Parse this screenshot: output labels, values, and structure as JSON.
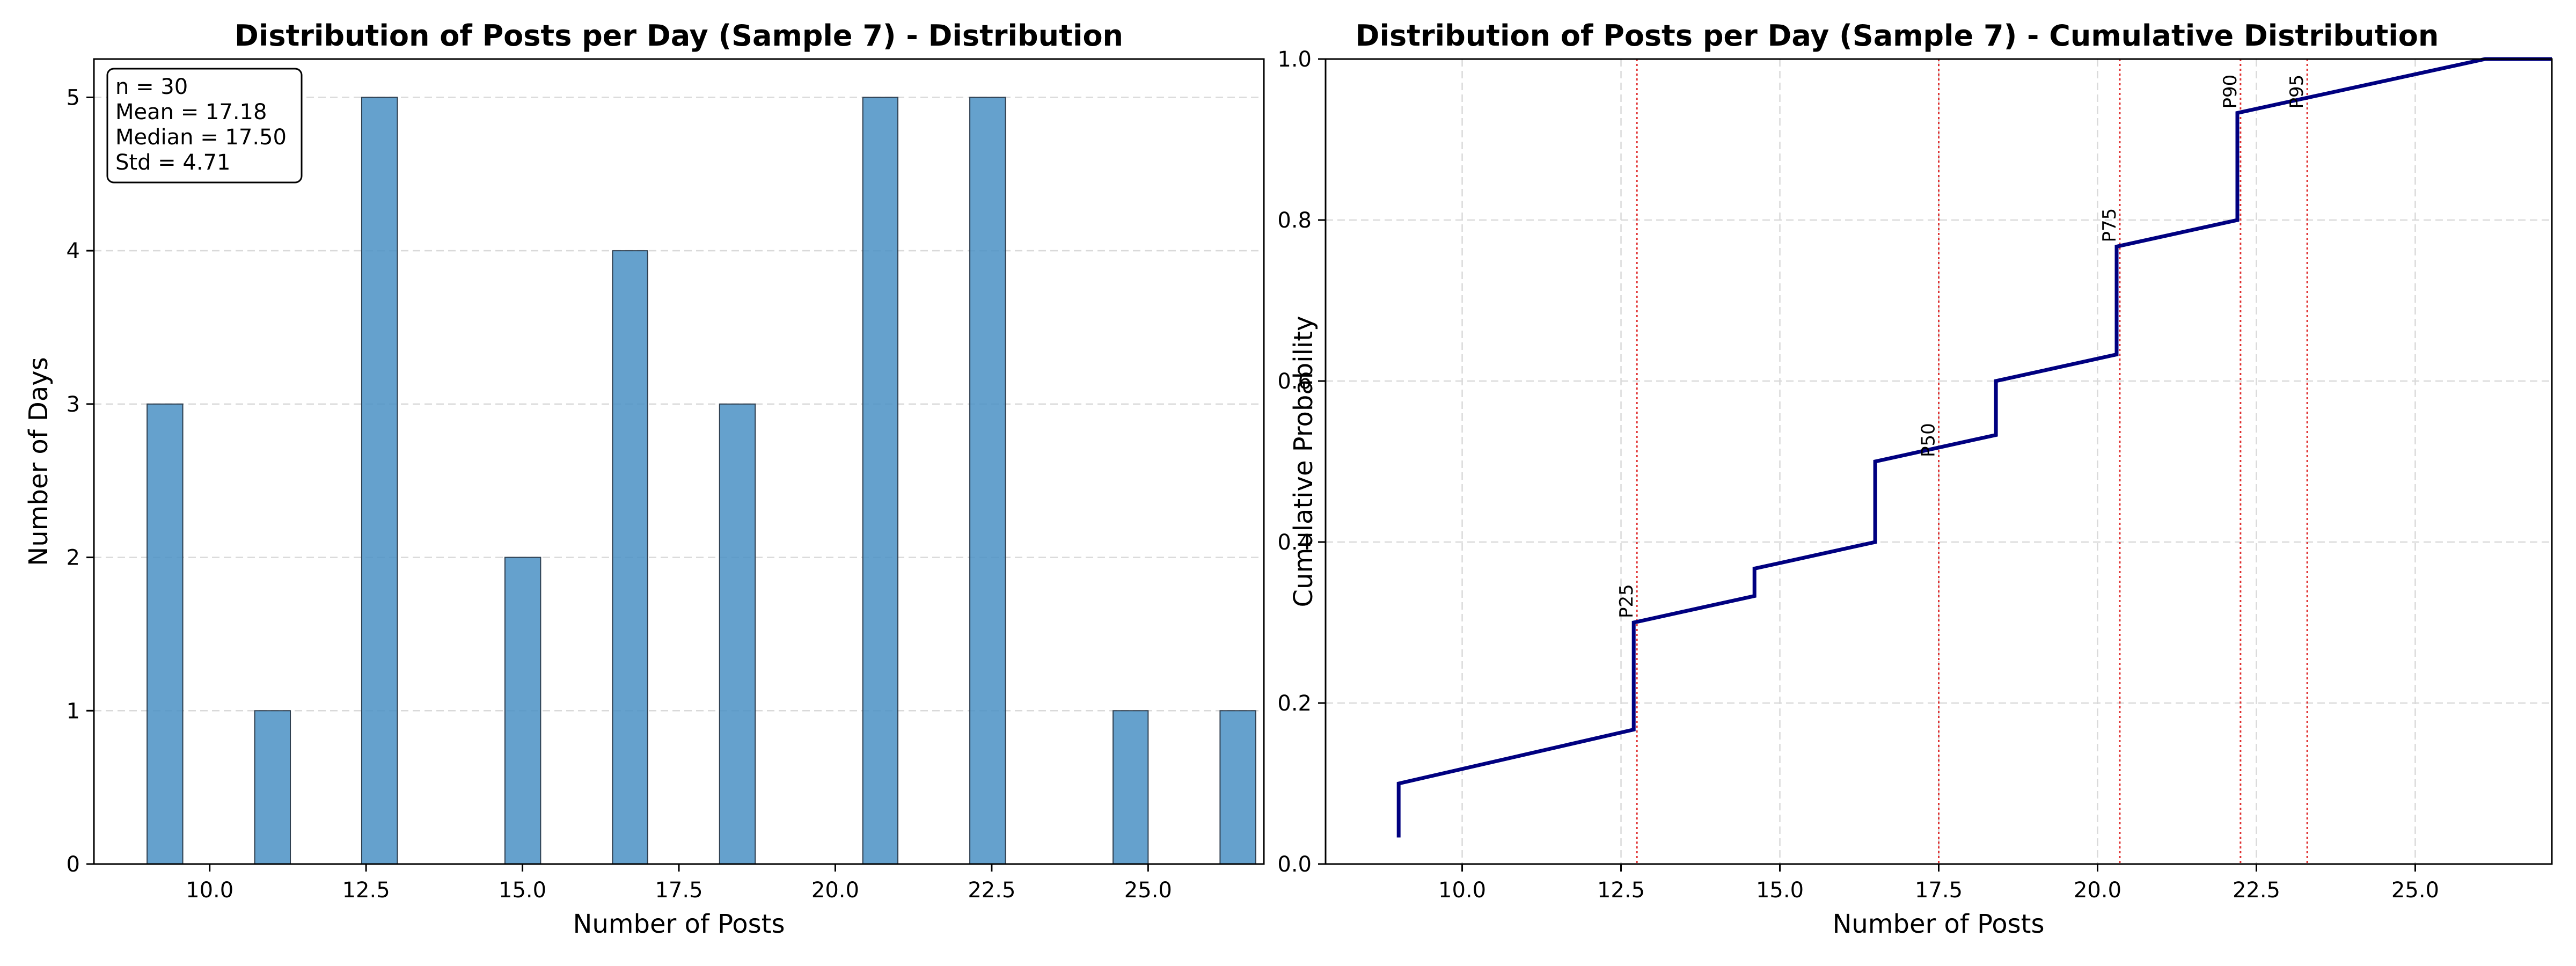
{
  "chart_data": [
    {
      "type": "bar",
      "title": "Distribution of Posts per Day (Sample 7) - Distribution",
      "xlabel": "Number of Posts",
      "ylabel": "Number of Days",
      "xlim": [
        8.15,
        26.85
      ],
      "ylim": [
        0,
        5.25
      ],
      "xticks": [
        10.0,
        12.5,
        15.0,
        17.5,
        20.0,
        22.5,
        25.0
      ],
      "xtick_labels": [
        "10.0",
        "12.5",
        "15.0",
        "17.5",
        "20.0",
        "22.5",
        "25.0"
      ],
      "yticks": [
        0,
        1,
        2,
        3,
        4,
        5
      ],
      "ytick_labels": [
        "0",
        "1",
        "2",
        "3",
        "4",
        "5"
      ],
      "grid": "y-dashed",
      "bar_color": "#4a90c4",
      "bins": [
        {
          "x0": 9.0,
          "x1": 9.57,
          "value": 3
        },
        {
          "x0": 10.72,
          "x1": 11.29,
          "value": 1
        },
        {
          "x0": 12.43,
          "x1": 13.0,
          "value": 5
        },
        {
          "x0": 14.72,
          "x1": 15.29,
          "value": 2
        },
        {
          "x0": 16.44,
          "x1": 17.0,
          "value": 4
        },
        {
          "x0": 18.15,
          "x1": 18.72,
          "value": 3
        },
        {
          "x0": 20.44,
          "x1": 21.0,
          "value": 5
        },
        {
          "x0": 22.15,
          "x1": 22.72,
          "value": 5
        },
        {
          "x0": 24.44,
          "x1": 25.0,
          "value": 1
        },
        {
          "x0": 26.15,
          "x1": 26.72,
          "value": 1
        }
      ],
      "stats": {
        "n": "n = 30",
        "mean": "Mean = 17.18",
        "median": "Median = 17.50",
        "std": "Std = 4.71"
      }
    },
    {
      "type": "line",
      "title": "Distribution of Posts per Day (Sample 7) - Cumulative Distribution",
      "xlabel": "Number of Posts",
      "ylabel": "Cumulative Probability",
      "xlim": [
        7.85,
        27.15
      ],
      "ylim": [
        0.0,
        1.0
      ],
      "xticks": [
        10.0,
        12.5,
        15.0,
        17.5,
        20.0,
        22.5,
        25.0
      ],
      "xtick_labels": [
        "10.0",
        "12.5",
        "15.0",
        "17.5",
        "20.0",
        "22.5",
        "25.0"
      ],
      "yticks": [
        0.0,
        0.2,
        0.4,
        0.6,
        0.8,
        1.0
      ],
      "ytick_labels": [
        "0.0",
        "0.2",
        "0.4",
        "0.6",
        "0.8",
        "1.0"
      ],
      "grid": "both-dashed",
      "line_color": "#000080",
      "points": [
        [
          9.0,
          0.033
        ],
        [
          9.0,
          0.1
        ],
        [
          12.7,
          0.167
        ],
        [
          12.7,
          0.3
        ],
        [
          14.6,
          0.333
        ],
        [
          14.6,
          0.367
        ],
        [
          16.5,
          0.4
        ],
        [
          16.5,
          0.5
        ],
        [
          18.4,
          0.533
        ],
        [
          18.4,
          0.6
        ],
        [
          20.3,
          0.633
        ],
        [
          20.3,
          0.767
        ],
        [
          22.2,
          0.8
        ],
        [
          22.2,
          0.933
        ],
        [
          26.1,
          1.0
        ],
        [
          27.15,
          1.0
        ]
      ],
      "percentiles": [
        {
          "label": "P25",
          "x": 12.75
        },
        {
          "label": "P50",
          "x": 17.5
        },
        {
          "label": "P75",
          "x": 20.35
        },
        {
          "label": "P90",
          "x": 22.25
        },
        {
          "label": "P95",
          "x": 23.3
        }
      ],
      "percentile_color": "#e03030"
    }
  ]
}
